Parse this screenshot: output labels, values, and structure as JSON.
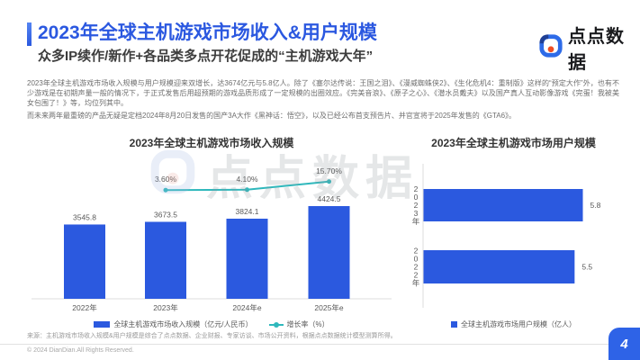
{
  "header": {
    "title": "2023年全球主机游戏市场收入&用户规模",
    "subtitle": "众多IP续作/新作+各品类多点开花促成的“主机游戏大年”",
    "logo_text": "点点数据"
  },
  "body": {
    "paragraph1": "2023年全球主机游戏市场收入规模与用户规模迎来双增长，达3674亿元与5.8亿人。除了《塞尔达传说：王国之泪》、《漫威蜘蛛侠2》、《生化危机4：重制版》这样的“预定大作”外，也有不少游戏是在初期声量一般的情况下，于正式发售后用超预期的游戏品质形成了一定规模的出圈效应。《完美音浪》、《原子之心》、《潜水员戴夫》以及国产真人互动影像游戏《完蛋！我被美女包围了！》等，均位列其中。",
    "paragraph2": "而未来两年最重磅的产品无疑是定档2024年8月20日发售的国产3A大作《黑神话：悟空》，以及已经公布首支预告片、并官宣将于2025年发售的《GTA6》。"
  },
  "watermark": {
    "text": "点点数据"
  },
  "chart_data": [
    {
      "type": "bar",
      "title": "2023年全球主机游戏市场收入规模",
      "categories": [
        "2022年",
        "2023年",
        "2024年e",
        "2025年e"
      ],
      "series": [
        {
          "name": "全球主机游戏市场收入规模（亿元/人民币）",
          "type": "bar",
          "values": [
            3545.8,
            3673.5,
            3824.1,
            4424.5
          ]
        },
        {
          "name": "增长率（%）",
          "type": "line",
          "values": [
            null,
            3.6,
            4.1,
            15.7
          ],
          "labels": [
            "",
            "3.60%",
            "4.10%",
            "15.70%"
          ]
        }
      ],
      "ylim": [
        0,
        4800
      ],
      "legend_position": "bottom",
      "grid": false,
      "bar_color": "#2b59df",
      "line_color": "#2fb8bc"
    },
    {
      "type": "bar-horizontal",
      "title": "2023年全球主机游戏市场用户规模",
      "categories": [
        "2023年",
        "2022年"
      ],
      "values": [
        5.8,
        5.5
      ],
      "legend": "全球主机游戏市场用户规模（亿人）",
      "xlim": [
        0,
        6.5
      ],
      "legend_position": "bottom",
      "grid": false,
      "bar_color": "#2b59df"
    }
  ],
  "footer": {
    "source": "来源：主机游戏市场收入规模&用户规模是综合了点点数据、企业财报、专家访谈、市场公开资料，根据点点数据统计模型测算所得。",
    "copyright": "© 2024 DianDian.All Rights Reserved.",
    "page_number": "4"
  },
  "colors": {
    "accent_blue": "#2b59df",
    "title_blue": "#2b58e0",
    "line_teal": "#2fb8bc",
    "badge_blue": "#2e63e7",
    "logo_orange": "#f04e23"
  }
}
